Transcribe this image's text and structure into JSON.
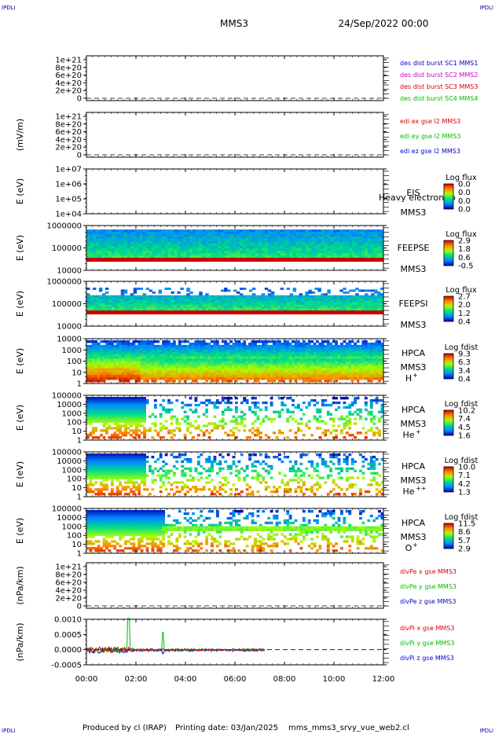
{
  "header": {
    "spacecraft": "MMS3",
    "datetime": "24/Sep/2022 00:00",
    "corner_left": "IPDLI",
    "corner_right": "IPDLI"
  },
  "footer": {
    "produced_by": "Produced by cl (IRAP)",
    "printing_date": "Printing date: 03/Jan/2025",
    "filename": "mms_mms3_srvy_vue_web2.cl"
  },
  "colors": {
    "red": "#dd0000",
    "green": "#00bb00",
    "blue": "#0000cc",
    "magenta": "#cc00cc"
  },
  "chart_data": [
    {
      "type": "line",
      "ylabel": "",
      "yticks": [
        "1e+21",
        "8e+20",
        "6e+20",
        "4e+20",
        "2e+20",
        "0"
      ],
      "legend": [
        {
          "text": "des dist burst SC1 MMS1",
          "color": "#0000cc"
        },
        {
          "text": "des dist burst SC2 MMS2",
          "color": "#cc00cc"
        },
        {
          "text": "des dist burst SC3 MMS3",
          "color": "#dd0000"
        },
        {
          "text": "des dist burst SC4 MMS4",
          "color": "#00bb00"
        }
      ]
    },
    {
      "type": "line",
      "ylabel": "(mV/m)",
      "yticks": [
        "1e+21",
        "8e+20",
        "6e+20",
        "4e+20",
        "2e+20",
        "0"
      ],
      "legend": [
        {
          "text": "edi ex gse l2 MMS3",
          "color": "#dd0000"
        },
        {
          "text": "edi ey gse l2 MMS3",
          "color": "#00bb00"
        },
        {
          "text": "edi ez gse l2 MMS3",
          "color": "#0000cc"
        }
      ]
    },
    {
      "type": "heatmap",
      "ylabel": "E (eV)",
      "yticks": [
        "1e+07",
        "1e+06",
        "1e+05",
        "1e+04"
      ],
      "instrument": [
        "EIS",
        "MMS3"
      ],
      "overlay_text": "Heavy electron to",
      "cbar_title": "Log flux",
      "cbar_ticks": [
        "0.0",
        "0.0",
        "0.0",
        "0.0"
      ]
    },
    {
      "type": "heatmap",
      "ylabel": "E (eV)",
      "yticks": [
        "1000000",
        "100000",
        "10000"
      ],
      "instrument": [
        "FEEPSE",
        "MMS3"
      ],
      "cbar_title": "Log flux",
      "cbar_ticks": [
        "2.9",
        "1.8",
        "0.6",
        "-0.5"
      ]
    },
    {
      "type": "heatmap",
      "ylabel": "E (eV)",
      "yticks": [
        "1000000",
        "100000",
        "10000"
      ],
      "instrument": [
        "FEEPSI",
        "MMS3"
      ],
      "cbar_title": "Log flux",
      "cbar_ticks": [
        "2.7",
        "2.0",
        "1.2",
        "0.4"
      ]
    },
    {
      "type": "heatmap",
      "ylabel": "E (eV)",
      "yticks": [
        "10000",
        "1000",
        "100",
        "10",
        "1"
      ],
      "instrument": [
        "HPCA",
        "MMS3"
      ],
      "species": "H",
      "species_sup": "+",
      "cbar_title": "Log fdist",
      "cbar_ticks": [
        "9.3",
        "6.3",
        "3.4",
        "0.4"
      ]
    },
    {
      "type": "heatmap",
      "ylabel": "E (eV)",
      "yticks": [
        "100000",
        "10000",
        "1000",
        "100",
        "10",
        "1"
      ],
      "instrument": [
        "HPCA",
        "MMS3"
      ],
      "species": "He",
      "species_sup": "+",
      "cbar_title": "Log fdist",
      "cbar_ticks": [
        "10.2",
        "7.4",
        "4.5",
        "1.6"
      ]
    },
    {
      "type": "heatmap",
      "ylabel": "E (eV)",
      "yticks": [
        "100000",
        "10000",
        "1000",
        "100",
        "10",
        "1"
      ],
      "instrument": [
        "HPCA",
        "MMS3"
      ],
      "species": "He",
      "species_sup": "++",
      "cbar_title": "Log fdist",
      "cbar_ticks": [
        "10.0",
        "7.1",
        "4.2",
        "1.3"
      ]
    },
    {
      "type": "heatmap",
      "ylabel": "E (eV)",
      "yticks": [
        "100000",
        "10000",
        "1000",
        "100",
        "10",
        "1"
      ],
      "instrument": [
        "HPCA",
        "MMS3"
      ],
      "species": "O",
      "species_sup": "+",
      "cbar_title": "Log fdist",
      "cbar_ticks": [
        "11.5",
        "8.6",
        "5.7",
        "2.9"
      ]
    },
    {
      "type": "line",
      "ylabel": "(nPa/km)",
      "yticks": [
        "1e+21",
        "8e+20",
        "6e+20",
        "4e+20",
        "2e+20",
        "0"
      ],
      "legend": [
        {
          "text": "divPe x gse MMS3",
          "color": "#dd0000"
        },
        {
          "text": "divPe y gse MMS3",
          "color": "#00bb00"
        },
        {
          "text": "divPe z gse MMS3",
          "color": "#0000cc"
        }
      ]
    },
    {
      "type": "line",
      "ylabel": "(nPa/km)",
      "yticks": [
        "0.0010",
        "0.0005",
        "0.0000",
        "-0.0005"
      ],
      "legend": [
        {
          "text": "divPi x gse MMS3",
          "color": "#dd0000"
        },
        {
          "text": "divPi y gse MMS3",
          "color": "#00bb00"
        },
        {
          "text": "divPi z gse MMS3",
          "color": "#0000cc"
        }
      ]
    }
  ],
  "xaxis": {
    "ticks": [
      "00:00",
      "02:00",
      "04:00",
      "06:00",
      "08:00",
      "10:00",
      "12:00"
    ],
    "range_hours": [
      0,
      12
    ]
  }
}
